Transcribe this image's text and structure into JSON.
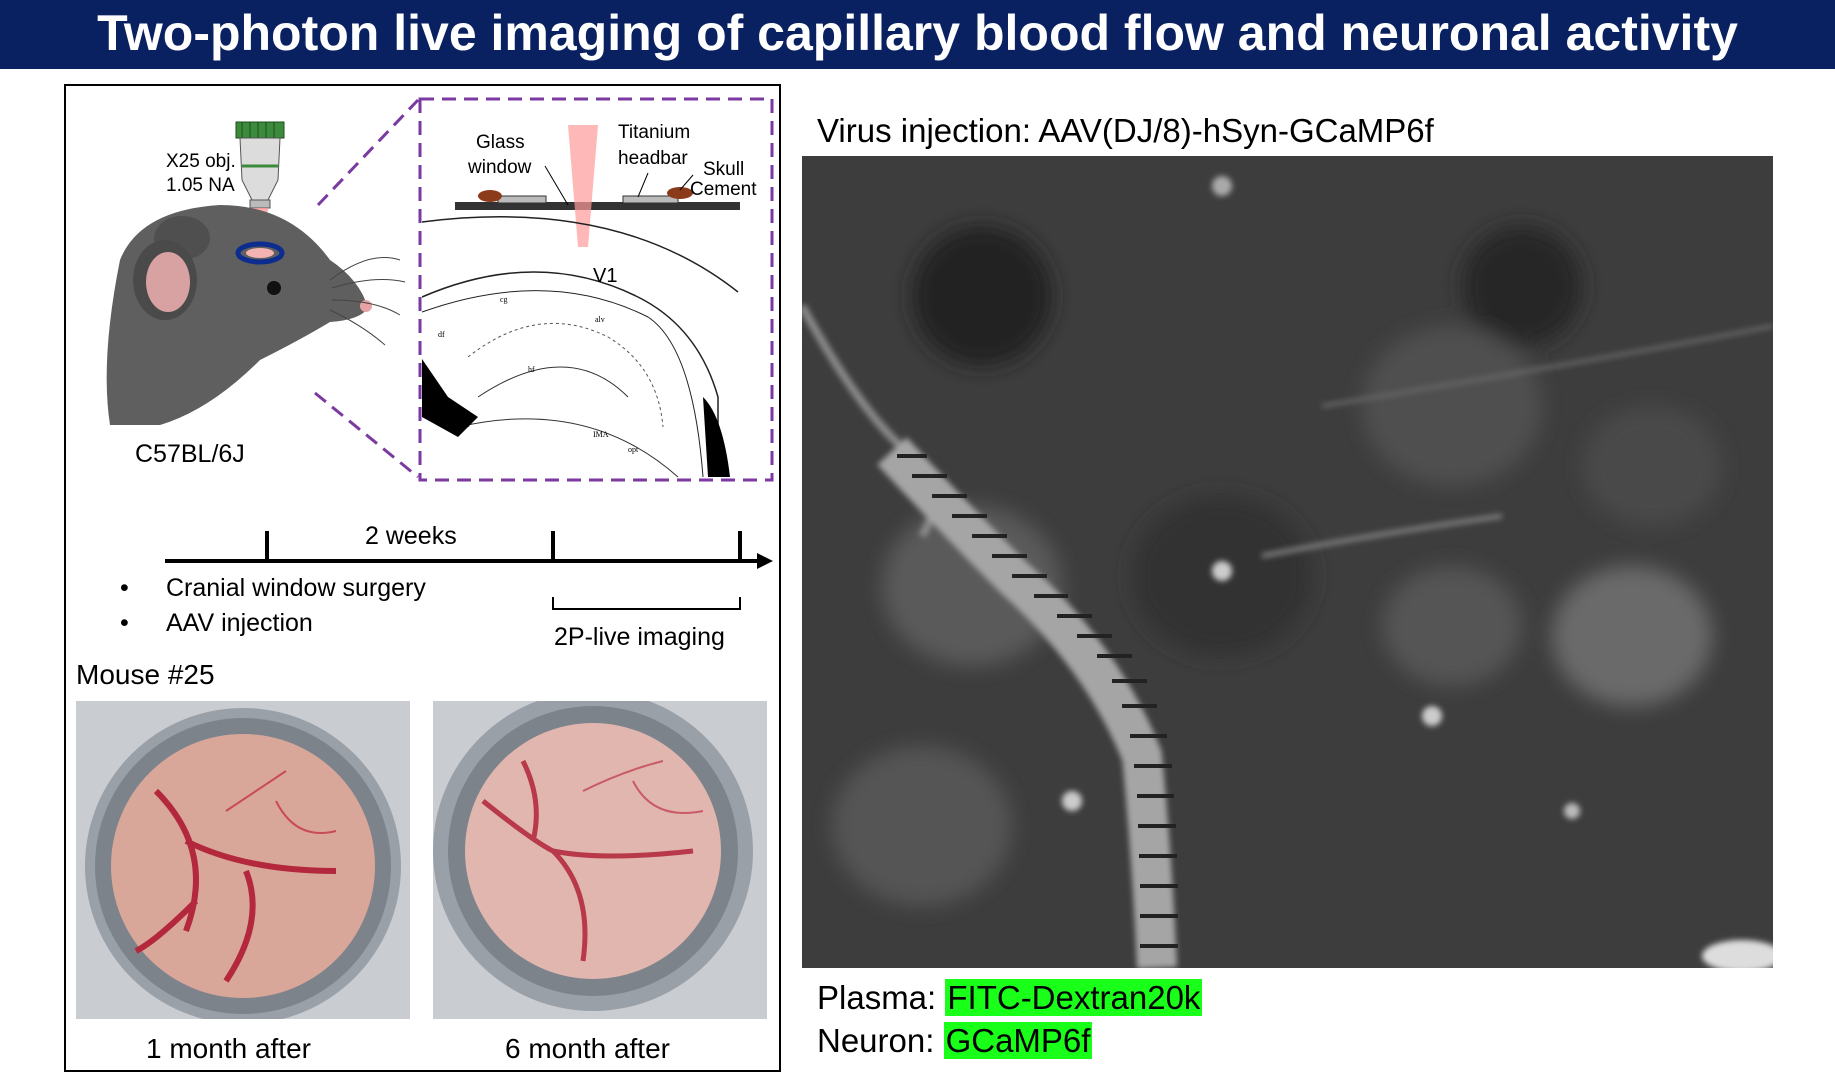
{
  "title": "Two-photon live imaging of capillary blood flow and neuronal activity",
  "schematic": {
    "objective_label_1": "X25 obj.",
    "objective_label_2": "1.05 NA",
    "strain": "C57BL/6J",
    "glass_window_1": "Glass",
    "glass_window_2": "window",
    "headbar_1": "Titanium",
    "headbar_2": "headbar",
    "skull_1": "Skull",
    "skull_2": "Cement",
    "region": "V1",
    "atlas_labels": [
      "cg",
      "df",
      "alv",
      "hf",
      "hhc",
      "IMA",
      "opt"
    ]
  },
  "timeline": {
    "interval": "2 weeks",
    "step1": "Cranial window surgery",
    "step2": "AAV injection",
    "imaging": "2P-live imaging",
    "bullet": "•"
  },
  "photos": {
    "mouse_label": "Mouse #25",
    "caption1": "1 month after",
    "caption2": "6 month after"
  },
  "imaging": {
    "virus_label": "Virus injection: AAV(DJ/8)-hSyn-GCaMP6f",
    "plasma_label": "Plasma: ",
    "plasma_value": "FITC-Dextran20k",
    "neuron_label": "Neuron: ",
    "neuron_value": "GCaMP6f"
  },
  "colors": {
    "banner": "#0a2161",
    "highlight": "#19ff19",
    "dashed_box": "#7a3aa0"
  }
}
